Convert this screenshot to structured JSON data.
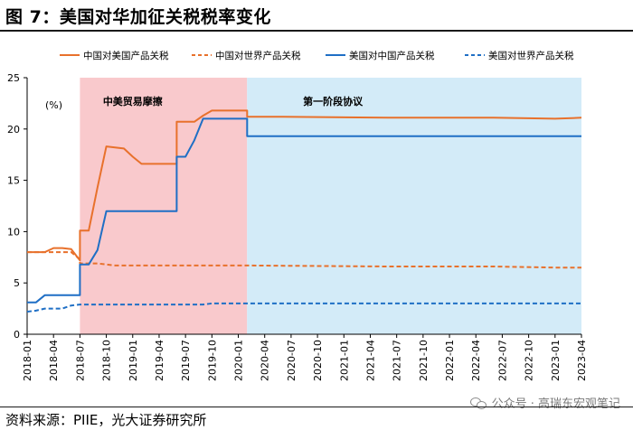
{
  "header": {
    "title": "图 7：美国对华加征关税税率变化"
  },
  "footer": {
    "source": "资料来源：PIIE，光大证券研究所",
    "watermark": "公众号 · 高瑞东宏观笔记"
  },
  "colors": {
    "orange": "#E8712C",
    "blue": "#1F6FC5",
    "trade_war_bg": "#F9C9CC",
    "phase_one_bg": "#D3EBF8"
  },
  "chart_data": {
    "type": "line",
    "unit_label": "(%)",
    "ylim": [
      0,
      25
    ],
    "yticks": [
      0,
      5,
      10,
      15,
      20,
      25
    ],
    "xlim": [
      "2018-01",
      "2023-04"
    ],
    "xticks": [
      "2018-01",
      "2018-04",
      "2018-07",
      "2018-10",
      "2019-01",
      "2019-04",
      "2019-07",
      "2019-10",
      "2020-01",
      "2020-04",
      "2020-07",
      "2020-10",
      "2021-01",
      "2021-04",
      "2021-07",
      "2021-10",
      "2022-01",
      "2022-04",
      "2022-07",
      "2022-10",
      "2023-01",
      "2023-04"
    ],
    "regions": [
      {
        "label": "中美贸易摩擦",
        "start": "2018-07",
        "end": "2020-02"
      },
      {
        "label": "第一阶段协议",
        "start": "2020-02",
        "end": "2023-04"
      }
    ],
    "series": [
      {
        "name": "中国对美国产品关税",
        "color": "orange",
        "dash": false,
        "points": [
          [
            "2018-01",
            8.0
          ],
          [
            "2018-03",
            8.0
          ],
          [
            "2018-04",
            8.4
          ],
          [
            "2018-05",
            8.4
          ],
          [
            "2018-06",
            8.3
          ],
          [
            "2018-06",
            8.3
          ],
          [
            "2018-07",
            7.2
          ],
          [
            "2018-07",
            10.1
          ],
          [
            "2018-08",
            10.1
          ],
          [
            "2018-09",
            14.3
          ],
          [
            "2018-10",
            18.3
          ],
          [
            "2018-11",
            18.2
          ],
          [
            "2018-12",
            18.1
          ],
          [
            "2019-01",
            17.3
          ],
          [
            "2019-02",
            16.6
          ],
          [
            "2019-03",
            16.6
          ],
          [
            "2019-04",
            16.6
          ],
          [
            "2019-05",
            16.6
          ],
          [
            "2019-06",
            16.6
          ],
          [
            "2019-06",
            20.7
          ],
          [
            "2019-07",
            20.7
          ],
          [
            "2019-08",
            20.7
          ],
          [
            "2019-09",
            21.3
          ],
          [
            "2019-10",
            21.8
          ],
          [
            "2019-12",
            21.8
          ],
          [
            "2020-02",
            21.8
          ],
          [
            "2020-02",
            21.2
          ],
          [
            "2020-06",
            21.2
          ],
          [
            "2021-06",
            21.1
          ],
          [
            "2022-03",
            21.1
          ],
          [
            "2022-06",
            21.1
          ],
          [
            "2023-01",
            21.0
          ],
          [
            "2023-04",
            21.1
          ]
        ]
      },
      {
        "name": "中国对世界产品关税",
        "color": "orange",
        "dash": true,
        "points": [
          [
            "2018-01",
            8.0
          ],
          [
            "2018-06",
            8.0
          ],
          [
            "2018-07",
            7.3
          ],
          [
            "2018-07",
            6.9
          ],
          [
            "2018-09",
            6.9
          ],
          [
            "2018-11",
            6.7
          ],
          [
            "2019-06",
            6.7
          ],
          [
            "2020-02",
            6.7
          ],
          [
            "2021-06",
            6.6
          ],
          [
            "2022-06",
            6.6
          ],
          [
            "2023-01",
            6.5
          ],
          [
            "2023-04",
            6.5
          ]
        ]
      },
      {
        "name": "美国对中国产品关税",
        "color": "blue",
        "dash": false,
        "points": [
          [
            "2018-01",
            3.1
          ],
          [
            "2018-02",
            3.1
          ],
          [
            "2018-03",
            3.8
          ],
          [
            "2018-04",
            3.8
          ],
          [
            "2018-06",
            3.8
          ],
          [
            "2018-07",
            3.8
          ],
          [
            "2018-07",
            6.8
          ],
          [
            "2018-08",
            6.8
          ],
          [
            "2018-09",
            8.2
          ],
          [
            "2018-10",
            12.0
          ],
          [
            "2018-11",
            12.0
          ],
          [
            "2019-04",
            12.0
          ],
          [
            "2019-06",
            12.0
          ],
          [
            "2019-06",
            17.3
          ],
          [
            "2019-07",
            17.3
          ],
          [
            "2019-08",
            18.9
          ],
          [
            "2019-09",
            21.0
          ],
          [
            "2019-10",
            21.0
          ],
          [
            "2020-01",
            21.0
          ],
          [
            "2020-02",
            21.0
          ],
          [
            "2020-02",
            19.3
          ],
          [
            "2020-06",
            19.3
          ],
          [
            "2023-04",
            19.3
          ]
        ]
      },
      {
        "name": "美国对世界产品关税",
        "color": "blue",
        "dash": true,
        "points": [
          [
            "2018-01",
            2.2
          ],
          [
            "2018-02",
            2.3
          ],
          [
            "2018-03",
            2.5
          ],
          [
            "2018-05",
            2.5
          ],
          [
            "2018-06",
            2.8
          ],
          [
            "2018-07",
            2.9
          ],
          [
            "2019-06",
            2.9
          ],
          [
            "2019-09",
            2.9
          ],
          [
            "2019-10",
            3.0
          ],
          [
            "2020-02",
            3.0
          ],
          [
            "2021-06",
            3.0
          ],
          [
            "2023-04",
            3.0
          ]
        ]
      }
    ]
  }
}
